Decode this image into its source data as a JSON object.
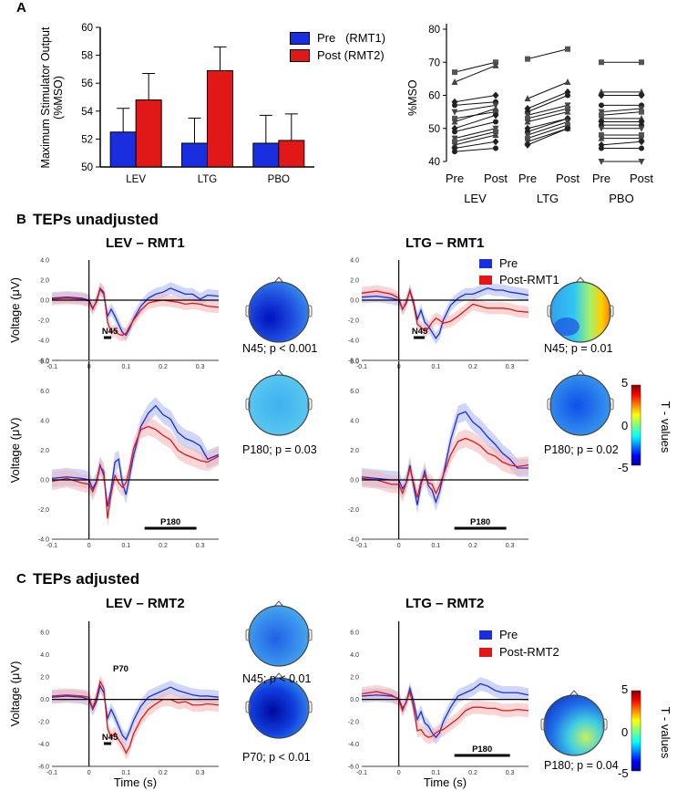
{
  "panel_letters": {
    "a": "A",
    "b": "B",
    "c": "C"
  },
  "section_titles": {
    "b": "TEPs unadjusted",
    "c": "TEPs adjusted"
  },
  "subplot_titles": {
    "lev_rmt1": "LEV – RMT1",
    "ltg_rmt1": "LTG – RMT1",
    "lev_rmt2": "LEV – RMT2",
    "ltg_rmt2": "LTG – RMT2"
  },
  "legends": {
    "a": {
      "pre": "Pre   (RMT1)",
      "post": "Post (RMT2)"
    },
    "b": {
      "pre": "Pre",
      "post": "Post-RMT1"
    },
    "c": {
      "pre": "Pre",
      "post": "Post-RMT2"
    }
  },
  "colors": {
    "pre": "#1a2ee0",
    "post": "#e01818",
    "pre_band": "#aab4f0",
    "post_band": "#f4b4b4"
  },
  "axis_labels": {
    "voltage": "Voltage (μV)",
    "time": "Time (s)",
    "mso": "%MSO",
    "mso_bar": "Maximum Stimulator Output (%MSO)",
    "tvalues": "T - values"
  },
  "colorbar": {
    "ticks": [
      "5",
      "0",
      "-5"
    ]
  },
  "stats": {
    "b_lev_n45": "N45; p < 0.001",
    "b_ltg_n45": "N45; p = 0.01",
    "b_lev_p180": "P180; p = 0.03",
    "b_ltg_p180": "P180; p = 0.02",
    "c_lev_n45": "N45; p < 0.01",
    "c_lev_p70": "P70; p < 0.01",
    "c_ltg_p180": "P180; p = 0.04"
  },
  "component_labels": {
    "n45": "N45",
    "p180": "P180",
    "p70": "P70"
  },
  "chart_data": [
    {
      "id": "bar_mso",
      "type": "bar",
      "title": "",
      "ylabel": "Maximum Stimulator Output (%MSO)",
      "categories": [
        "LEV",
        "LTG",
        "PBO"
      ],
      "ylim": [
        50,
        60
      ],
      "yticks": [
        50,
        52,
        54,
        56,
        58,
        60
      ],
      "series": [
        {
          "name": "Pre (RMT1)",
          "values": [
            52.5,
            51.7,
            51.7
          ],
          "err": [
            1.7,
            1.8,
            2.0
          ]
        },
        {
          "name": "Post (RMT2)",
          "values": [
            54.8,
            56.9,
            51.9
          ],
          "err": [
            1.9,
            1.7,
            1.9
          ]
        }
      ]
    },
    {
      "id": "paired_mso",
      "type": "line",
      "ylabel": "%MSO",
      "ylim": [
        40,
        80
      ],
      "yticks": [
        40,
        50,
        60,
        70,
        80
      ],
      "groups": [
        "LEV",
        "LTG",
        "PBO"
      ],
      "conditions": [
        "Pre",
        "Post"
      ],
      "pairs": {
        "LEV": [
          [
            67,
            70
          ],
          [
            64,
            69
          ],
          [
            58,
            60
          ],
          [
            57,
            58
          ],
          [
            55,
            57
          ],
          [
            53,
            55
          ],
          [
            52,
            56
          ],
          [
            50,
            54
          ],
          [
            49,
            52
          ],
          [
            47,
            50
          ],
          [
            46,
            49
          ],
          [
            45,
            48
          ],
          [
            44,
            46
          ],
          [
            43,
            44
          ]
        ],
        "LTG": [
          [
            71,
            74
          ],
          [
            59,
            64
          ],
          [
            56,
            61
          ],
          [
            55,
            60
          ],
          [
            54,
            57
          ],
          [
            53,
            56
          ],
          [
            52,
            55
          ],
          [
            50,
            53
          ],
          [
            49,
            53
          ],
          [
            48,
            52
          ],
          [
            47,
            51
          ],
          [
            46,
            50
          ],
          [
            45,
            50
          ]
        ],
        "PBO": [
          [
            70,
            70
          ],
          [
            61,
            61
          ],
          [
            60,
            60
          ],
          [
            57,
            57
          ],
          [
            55,
            56
          ],
          [
            54,
            55
          ],
          [
            53,
            53
          ],
          [
            52,
            52
          ],
          [
            51,
            51
          ],
          [
            50,
            50
          ],
          [
            48,
            48
          ],
          [
            47,
            47
          ],
          [
            45,
            46
          ],
          [
            44,
            44
          ],
          [
            40,
            40
          ]
        ]
      }
    },
    {
      "id": "tep_lev_rmt1_a",
      "type": "line",
      "x": [
        -0.1,
        -0.06,
        -0.02,
        0,
        0.01,
        0.02,
        0.03,
        0.04,
        0.05,
        0.06,
        0.07,
        0.08,
        0.09,
        0.1,
        0.11,
        0.12,
        0.14,
        0.16,
        0.18,
        0.2,
        0.22,
        0.24,
        0.26,
        0.28,
        0.3,
        0.32,
        0.35
      ],
      "series": [
        {
          "name": "Pre",
          "values": [
            0.2,
            0.3,
            0.2,
            0,
            -0.8,
            -0.2,
            1.1,
            0.6,
            -1.6,
            -0.9,
            -1.6,
            -2.4,
            -3.2,
            -3.5,
            -2.8,
            -1.9,
            -0.6,
            0.2,
            0.6,
            0.8,
            1.2,
            0.9,
            0.6,
            0.6,
            0.1,
            0.5,
            0.4
          ]
        },
        {
          "name": "Post-RMT1",
          "values": [
            0.1,
            0.2,
            0.1,
            -0.1,
            -0.9,
            -0.1,
            1.2,
            0.8,
            -2.2,
            -3.2,
            -3.0,
            -3.4,
            -3.5,
            -3.3,
            -2.6,
            -2.0,
            -1.0,
            -0.3,
            -0.1,
            0.0,
            -0.1,
            -0.2,
            -0.4,
            -0.3,
            -0.4,
            -0.6,
            -0.7
          ]
        }
      ],
      "xlim": [
        -0.1,
        0.35
      ],
      "ylim": [
        -6.0,
        4.0
      ],
      "xticks": [
        "-0.1",
        "0",
        "0.1",
        "0.2",
        "0.3"
      ],
      "yticks": [
        "4.0",
        "2.0",
        "0.0",
        "-2.0",
        "-4.0",
        "-6.0"
      ],
      "sig_window": [
        0.04,
        0.06
      ],
      "component": "N45"
    },
    {
      "id": "tep_ltg_rmt1_a",
      "type": "line",
      "x": [
        -0.1,
        -0.06,
        -0.02,
        0,
        0.01,
        0.02,
        0.03,
        0.04,
        0.05,
        0.06,
        0.07,
        0.08,
        0.09,
        0.1,
        0.11,
        0.12,
        0.14,
        0.16,
        0.18,
        0.2,
        0.22,
        0.24,
        0.26,
        0.28,
        0.3,
        0.32,
        0.35
      ],
      "series": [
        {
          "name": "Pre",
          "values": [
            0.3,
            0.4,
            0.2,
            0,
            -0.9,
            -0.3,
            1.0,
            -0.2,
            -1.9,
            -1.0,
            -2.2,
            -2.6,
            -3.2,
            -3.8,
            -3.3,
            -2.0,
            -0.5,
            0.2,
            0.6,
            0.6,
            0.9,
            1.2,
            1.0,
            1.0,
            0.8,
            0.7,
            0.5
          ]
        },
        {
          "name": "Post-RMT1",
          "values": [
            0.7,
            0.9,
            0.6,
            0.2,
            -0.9,
            -0.2,
            0.9,
            -0.4,
            -2.4,
            -2.7,
            -3.1,
            -2.8,
            -2.2,
            -1.8,
            -2.0,
            -2.3,
            -2.1,
            -1.6,
            -1.0,
            -0.4,
            -0.6,
            -0.8,
            -0.8,
            -0.8,
            -0.9,
            -1.1,
            -1.2
          ]
        }
      ],
      "xlim": [
        -0.1,
        0.35
      ],
      "ylim": [
        -6.0,
        4.0
      ],
      "xticks": [
        "-0.1",
        "0",
        "0.1",
        "0.2",
        "0.3"
      ],
      "yticks": [
        "4.0",
        "2.0",
        "0.0",
        "-2.0",
        "-4.0",
        "-6.0"
      ],
      "sig_window": [
        0.04,
        0.07
      ],
      "component": "N45"
    },
    {
      "id": "tep_lev_rmt1_b",
      "type": "line",
      "x": [
        -0.1,
        -0.06,
        -0.02,
        0,
        0.01,
        0.02,
        0.03,
        0.04,
        0.05,
        0.06,
        0.07,
        0.08,
        0.09,
        0.1,
        0.11,
        0.12,
        0.14,
        0.16,
        0.18,
        0.2,
        0.22,
        0.24,
        0.26,
        0.28,
        0.3,
        0.32,
        0.35
      ],
      "series": [
        {
          "name": "Pre",
          "values": [
            0.1,
            0.2,
            0.1,
            0,
            -0.6,
            -0.1,
            1.0,
            0.3,
            -1.8,
            -0.6,
            1.2,
            1.4,
            -0.2,
            -1.0,
            0.3,
            1.6,
            3.6,
            4.5,
            5.0,
            4.4,
            4.1,
            3.2,
            2.8,
            2.6,
            2.3,
            1.4,
            1.7
          ]
        },
        {
          "name": "Post-RMT1",
          "values": [
            -0.1,
            0.1,
            -0.2,
            -0.3,
            -0.8,
            -0.2,
            0.9,
            0.6,
            -2.6,
            -0.9,
            0.3,
            -0.2,
            -0.5,
            -0.2,
            0.8,
            2.1,
            3.4,
            3.6,
            3.4,
            3.0,
            2.7,
            2.0,
            1.7,
            1.5,
            1.3,
            1.2,
            1.6
          ]
        }
      ],
      "xlim": [
        -0.1,
        0.35
      ],
      "ylim": [
        -4.0,
        8.0
      ],
      "xticks": [
        "-0.1",
        "0",
        "0.1",
        "0.2",
        "0.3"
      ],
      "yticks": [
        "8.0",
        "6.0",
        "4.0",
        "2.0",
        "0.0",
        "-2.0",
        "-4.0"
      ],
      "sig_window": [
        0.15,
        0.29
      ],
      "component": "P180"
    },
    {
      "id": "tep_ltg_rmt1_b",
      "type": "line",
      "x": [
        -0.1,
        -0.06,
        -0.02,
        0,
        0.01,
        0.02,
        0.03,
        0.04,
        0.05,
        0.06,
        0.07,
        0.08,
        0.09,
        0.1,
        0.11,
        0.12,
        0.14,
        0.16,
        0.18,
        0.2,
        0.22,
        0.24,
        0.26,
        0.28,
        0.3,
        0.32,
        0.35
      ],
      "series": [
        {
          "name": "Pre",
          "values": [
            0.2,
            0.1,
            0.0,
            0,
            -0.6,
            -0.2,
            1.0,
            -0.4,
            -1.7,
            -0.3,
            0.6,
            -0.4,
            -0.7,
            -1.5,
            -0.8,
            0.3,
            2.7,
            4.4,
            4.6,
            3.9,
            3.5,
            2.9,
            2.4,
            1.8,
            1.4,
            0.8,
            0.8
          ]
        },
        {
          "name": "Post-RMT1",
          "values": [
            0.1,
            0.0,
            -0.3,
            -0.3,
            -0.9,
            -0.2,
            0.8,
            -0.2,
            -1.2,
            -0.1,
            0.3,
            -0.2,
            -0.3,
            -0.9,
            -0.4,
            0.3,
            1.7,
            2.6,
            2.8,
            2.6,
            2.3,
            1.8,
            1.6,
            1.2,
            1.0,
            0.9,
            1.0
          ]
        }
      ],
      "xlim": [
        -0.1,
        0.35
      ],
      "ylim": [
        -4.0,
        8.0
      ],
      "xticks": [
        "-0.1",
        "0",
        "0.1",
        "0.2",
        "0.3"
      ],
      "yticks": [
        "8.0",
        "6.0",
        "4.0",
        "2.0",
        "0.0",
        "-2.0",
        "-4.0"
      ],
      "sig_window": [
        0.15,
        0.29
      ],
      "component": "P180"
    },
    {
      "id": "tep_lev_rmt2",
      "type": "line",
      "x": [
        -0.1,
        -0.06,
        -0.02,
        0,
        0.01,
        0.02,
        0.03,
        0.04,
        0.05,
        0.06,
        0.07,
        0.08,
        0.09,
        0.1,
        0.11,
        0.12,
        0.14,
        0.16,
        0.18,
        0.2,
        0.22,
        0.24,
        0.26,
        0.28,
        0.3,
        0.32,
        0.35
      ],
      "series": [
        {
          "name": "Pre",
          "values": [
            0.2,
            0.3,
            0.2,
            0,
            -0.9,
            -0.2,
            1.2,
            0.6,
            -1.7,
            -0.9,
            -1.6,
            -2.4,
            -3.2,
            -3.6,
            -2.8,
            -1.9,
            -0.6,
            0.2,
            0.5,
            0.8,
            1.1,
            0.8,
            0.6,
            0.4,
            0.3,
            0.3,
            0.2
          ]
        },
        {
          "name": "Post-RMT2",
          "values": [
            0.3,
            0.4,
            0.3,
            0.2,
            -0.8,
            0.2,
            1.6,
            1.0,
            -2.6,
            -3.4,
            -3.0,
            -3.6,
            -4.1,
            -4.8,
            -4.2,
            -3.1,
            -1.8,
            -0.9,
            -0.4,
            0.0,
            0.0,
            -0.3,
            -0.2,
            -0.5,
            -0.5,
            -0.4,
            -0.5
          ]
        }
      ],
      "xlim": [
        -0.1,
        0.35
      ],
      "ylim": [
        -6.0,
        7.0
      ],
      "xticks": [
        "-0.1",
        "0",
        "0.1",
        "0.2",
        "0.3"
      ],
      "yticks": [
        "6.0",
        "4.0",
        "2.0",
        "0.0",
        "-2.0",
        "-4.0",
        "-6.0"
      ],
      "sig_window": [
        0.04,
        0.06
      ],
      "component": "N45"
    },
    {
      "id": "tep_ltg_rmt2",
      "type": "line",
      "x": [
        -0.1,
        -0.06,
        -0.02,
        0,
        0.01,
        0.02,
        0.03,
        0.04,
        0.05,
        0.06,
        0.07,
        0.08,
        0.09,
        0.1,
        0.11,
        0.12,
        0.14,
        0.16,
        0.18,
        0.2,
        0.22,
        0.24,
        0.26,
        0.28,
        0.3,
        0.32,
        0.35
      ],
      "series": [
        {
          "name": "Pre",
          "values": [
            0.3,
            0.4,
            0.3,
            0.1,
            -0.8,
            -0.3,
            1.0,
            -0.2,
            -1.8,
            -1.1,
            -2.1,
            -2.4,
            -3.0,
            -3.4,
            -3.0,
            -2.0,
            -0.7,
            0.3,
            0.6,
            0.9,
            1.4,
            1.2,
            0.8,
            0.6,
            0.6,
            0.6,
            0.4
          ]
        },
        {
          "name": "Post-RMT2",
          "values": [
            0.5,
            0.7,
            0.4,
            0.0,
            -1.0,
            -0.2,
            0.7,
            -0.8,
            -2.8,
            -2.7,
            -3.2,
            -3.4,
            -3.3,
            -3.0,
            -2.8,
            -2.7,
            -2.2,
            -1.7,
            -1.0,
            -0.7,
            -0.7,
            -0.8,
            -0.8,
            -1.0,
            -1.0,
            -0.9,
            -1.0
          ]
        }
      ],
      "xlim": [
        -0.1,
        0.35
      ],
      "ylim": [
        -6.0,
        7.0
      ],
      "xticks": [
        "-0.1",
        "0",
        "0.1",
        "0.2",
        "0.3"
      ],
      "yticks": [
        "6.0",
        "4.0",
        "2.0",
        "0.0",
        "-2.0",
        "-4.0",
        "-6.0"
      ],
      "sig_window": [
        0.15,
        0.3
      ],
      "component": "P180"
    }
  ]
}
